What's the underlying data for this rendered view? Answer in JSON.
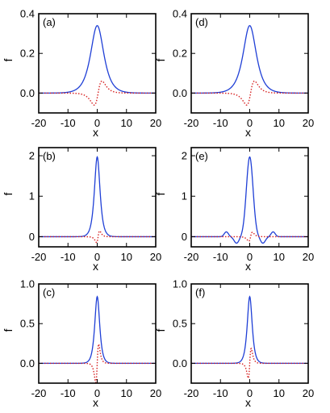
{
  "chart_data": [
    {
      "id": "a",
      "type": "line",
      "label": "(a)",
      "xlabel": "x",
      "ylabel": "f",
      "xlim": [
        -20,
        20
      ],
      "ylim": [
        -0.1,
        0.4
      ],
      "xticks": [
        -20,
        -10,
        0,
        10,
        20
      ],
      "yticks": [
        0.0,
        0.2,
        0.4
      ],
      "ytick_labels": [
        "0.0",
        "0.2",
        "0.4"
      ],
      "series": [
        {
          "style": "solid",
          "color": "#1f3fd6",
          "shape": "sech",
          "amp": 0.34,
          "w": 2.0
        },
        {
          "style": "dotted",
          "color": "#d62020",
          "shape": "odd",
          "amp": 0.055,
          "w": 1.5,
          "x0": 0.3
        }
      ]
    },
    {
      "id": "b",
      "type": "line",
      "label": "(b)",
      "xlabel": "x",
      "ylabel": "f",
      "xlim": [
        -20,
        20
      ],
      "ylim": [
        -0.25,
        2.2
      ],
      "xticks": [
        -20,
        -10,
        0,
        10,
        20
      ],
      "yticks": [
        0,
        1,
        2
      ],
      "ytick_labels": [
        "0",
        "1",
        "2"
      ],
      "series": [
        {
          "style": "solid",
          "color": "#1f3fd6",
          "shape": "sech",
          "amp": 1.97,
          "w": 0.85
        },
        {
          "style": "dotted",
          "color": "#d62020",
          "shape": "odd",
          "amp": 0.13,
          "w": 0.6,
          "x0": 0.3
        }
      ]
    },
    {
      "id": "c",
      "type": "line",
      "label": "(c)",
      "xlabel": "x",
      "ylabel": "f",
      "xlim": [
        -20,
        20
      ],
      "ylim": [
        -0.25,
        1.0
      ],
      "xticks": [
        -20,
        -10,
        0,
        10,
        20
      ],
      "yticks": [
        0.0,
        0.5,
        1.0
      ],
      "ytick_labels": [
        "0.0",
        "0.5",
        "1.0"
      ],
      "series": [
        {
          "style": "solid",
          "color": "#1f3fd6",
          "shape": "sech",
          "amp": 0.84,
          "w": 0.75
        },
        {
          "style": "dotted",
          "color": "#d62020",
          "shape": "odd",
          "amp": 0.22,
          "w": 0.55,
          "x0": 0.0
        }
      ]
    },
    {
      "id": "d",
      "type": "line",
      "label": "(d)",
      "xlabel": "x",
      "ylabel": "f",
      "xlim": [
        -20,
        20
      ],
      "ylim": [
        -0.1,
        0.4
      ],
      "xticks": [
        -20,
        -10,
        0,
        10,
        20
      ],
      "yticks": [
        0.0,
        0.2,
        0.4
      ],
      "ytick_labels": [
        "0.0",
        "0.2",
        "0.4"
      ],
      "series": [
        {
          "style": "solid",
          "color": "#1f3fd6",
          "shape": "sech",
          "amp": 0.34,
          "w": 2.0
        },
        {
          "style": "dotted",
          "color": "#d62020",
          "shape": "odd",
          "amp": 0.055,
          "w": 1.5,
          "x0": 0.3
        }
      ]
    },
    {
      "id": "e",
      "type": "line",
      "label": "(e)",
      "xlabel": "x",
      "ylabel": "f",
      "xlim": [
        -20,
        20
      ],
      "ylim": [
        -0.25,
        2.2
      ],
      "xticks": [
        -20,
        -10,
        0,
        10,
        20
      ],
      "yticks": [
        0,
        1,
        2
      ],
      "ytick_labels": [
        "0",
        "1",
        "2"
      ],
      "series": [
        {
          "style": "solid",
          "color": "#1f3fd6",
          "shape": "wiggle",
          "amp": 1.97,
          "w": 0.9
        },
        {
          "style": "dotted",
          "color": "#d62020",
          "shape": "odd",
          "amp": 0.1,
          "w": 0.7,
          "x0": 0.3
        }
      ]
    },
    {
      "id": "f",
      "type": "line",
      "label": "(f)",
      "xlabel": "x",
      "ylabel": "f",
      "xlim": [
        -20,
        20
      ],
      "ylim": [
        -0.25,
        1.0
      ],
      "xticks": [
        -20,
        -10,
        0,
        10,
        20
      ],
      "yticks": [
        0.0,
        0.5,
        1.0
      ],
      "ytick_labels": [
        "0.0",
        "0.5",
        "1.0"
      ],
      "series": [
        {
          "style": "solid",
          "color": "#1f3fd6",
          "shape": "sech",
          "amp": 0.84,
          "w": 0.75
        },
        {
          "style": "dotted",
          "color": "#d62020",
          "shape": "odd",
          "amp": 0.17,
          "w": 0.55,
          "x0": 0.0
        }
      ]
    }
  ]
}
